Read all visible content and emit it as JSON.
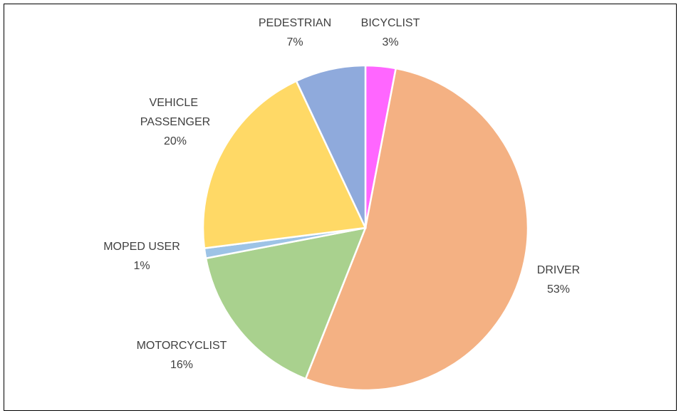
{
  "chart_data": {
    "type": "pie",
    "categories": [
      "BICYCLIST",
      "DRIVER",
      "MOTORCYCLIST",
      "MOPED USER",
      "VEHICLE PASSENGER",
      "PEDESTRIAN"
    ],
    "values": [
      3,
      53,
      16,
      1,
      20,
      7
    ],
    "value_labels": [
      "3%",
      "53%",
      "16%",
      "1%",
      "20%",
      "7%"
    ],
    "colors": [
      "#ff66ff",
      "#f4b183",
      "#a9d18e",
      "#9dc3e6",
      "#ffd966",
      "#8faadc"
    ]
  }
}
